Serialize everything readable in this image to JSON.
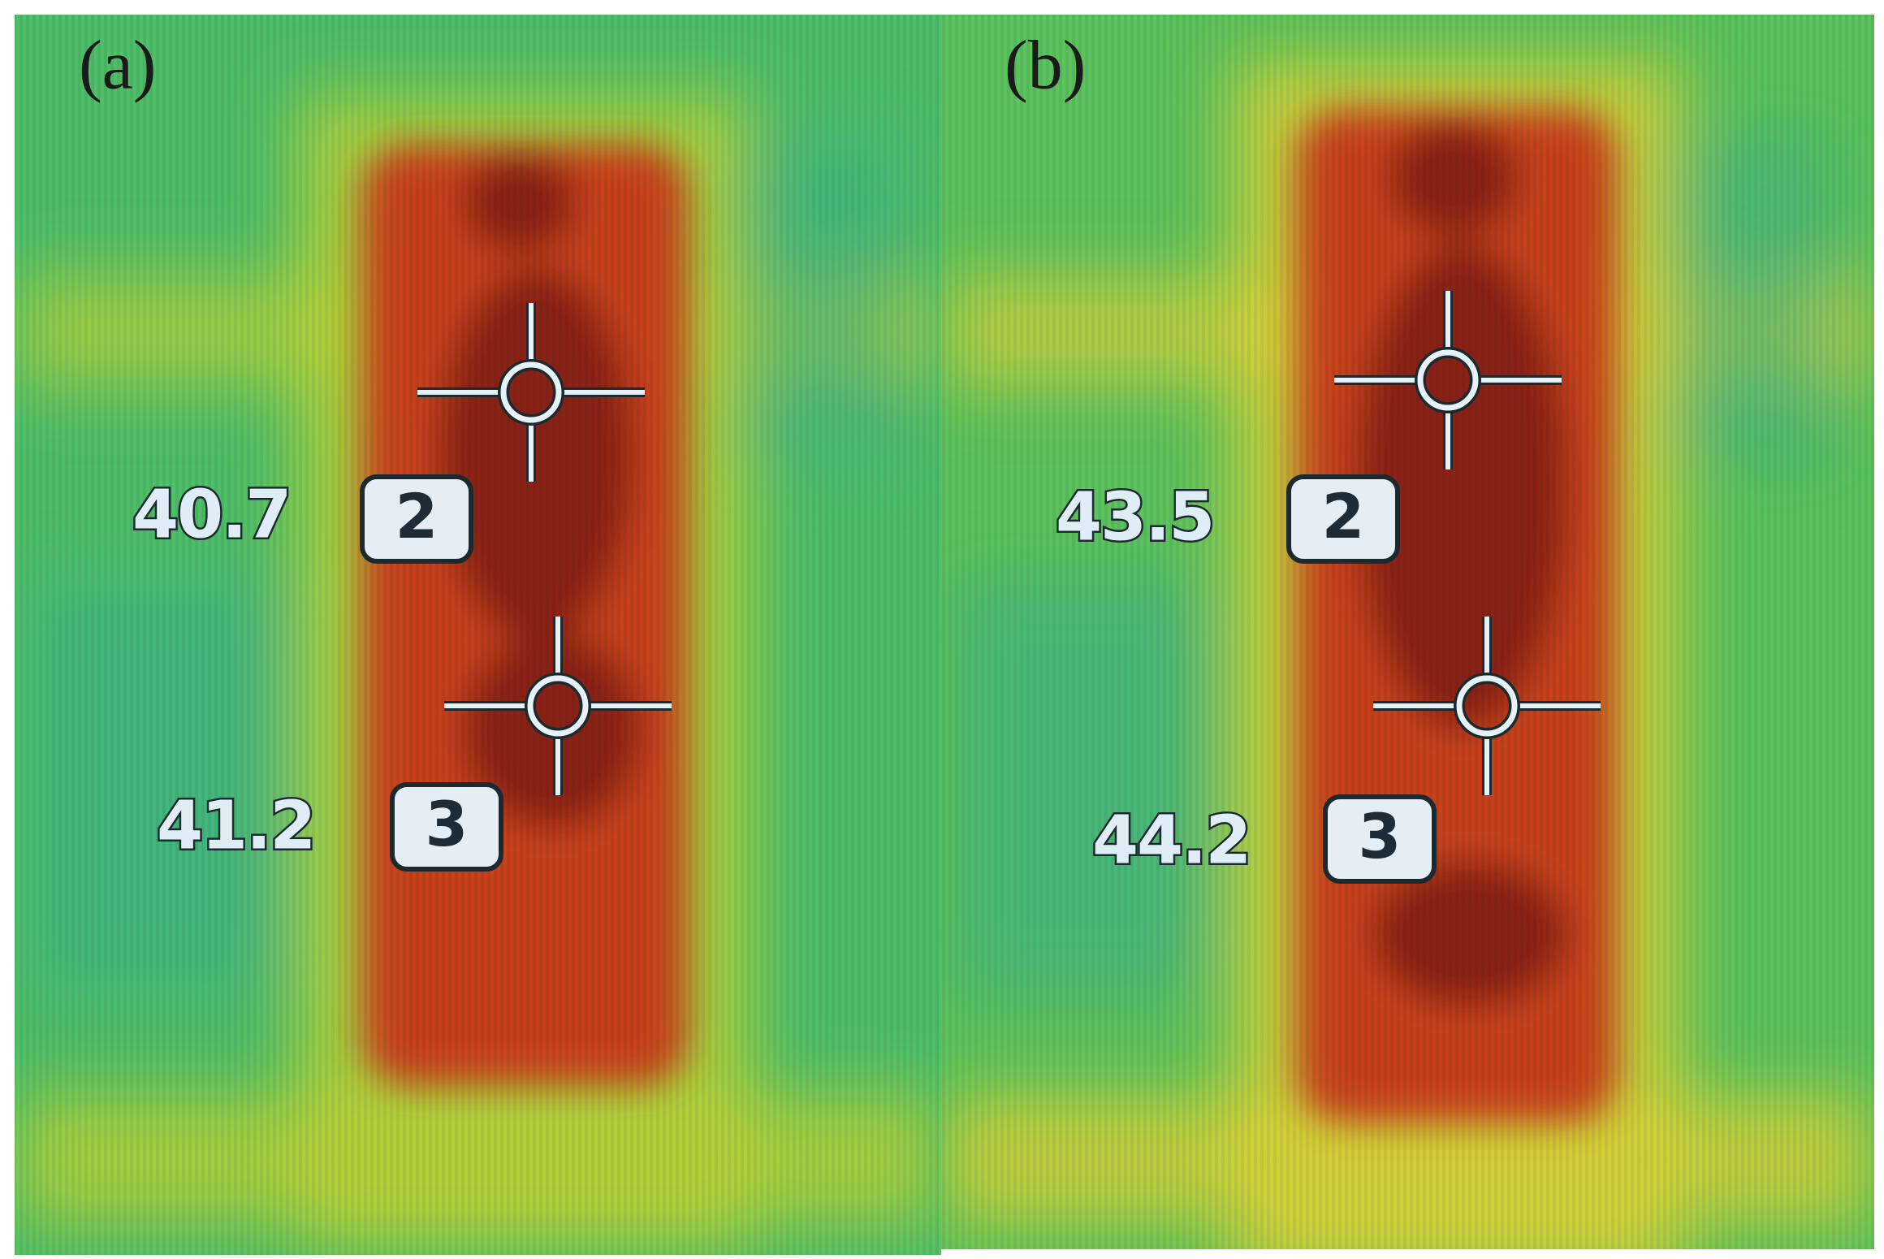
{
  "panels": [
    {
      "label": "(a)",
      "readings": [
        {
          "value": "40.7",
          "marker": "2"
        },
        {
          "value": "41.2",
          "marker": "3"
        }
      ]
    },
    {
      "label": "(b)",
      "readings": [
        {
          "value": "43.5",
          "marker": "2"
        },
        {
          "value": "44.2",
          "marker": "3"
        }
      ]
    }
  ]
}
